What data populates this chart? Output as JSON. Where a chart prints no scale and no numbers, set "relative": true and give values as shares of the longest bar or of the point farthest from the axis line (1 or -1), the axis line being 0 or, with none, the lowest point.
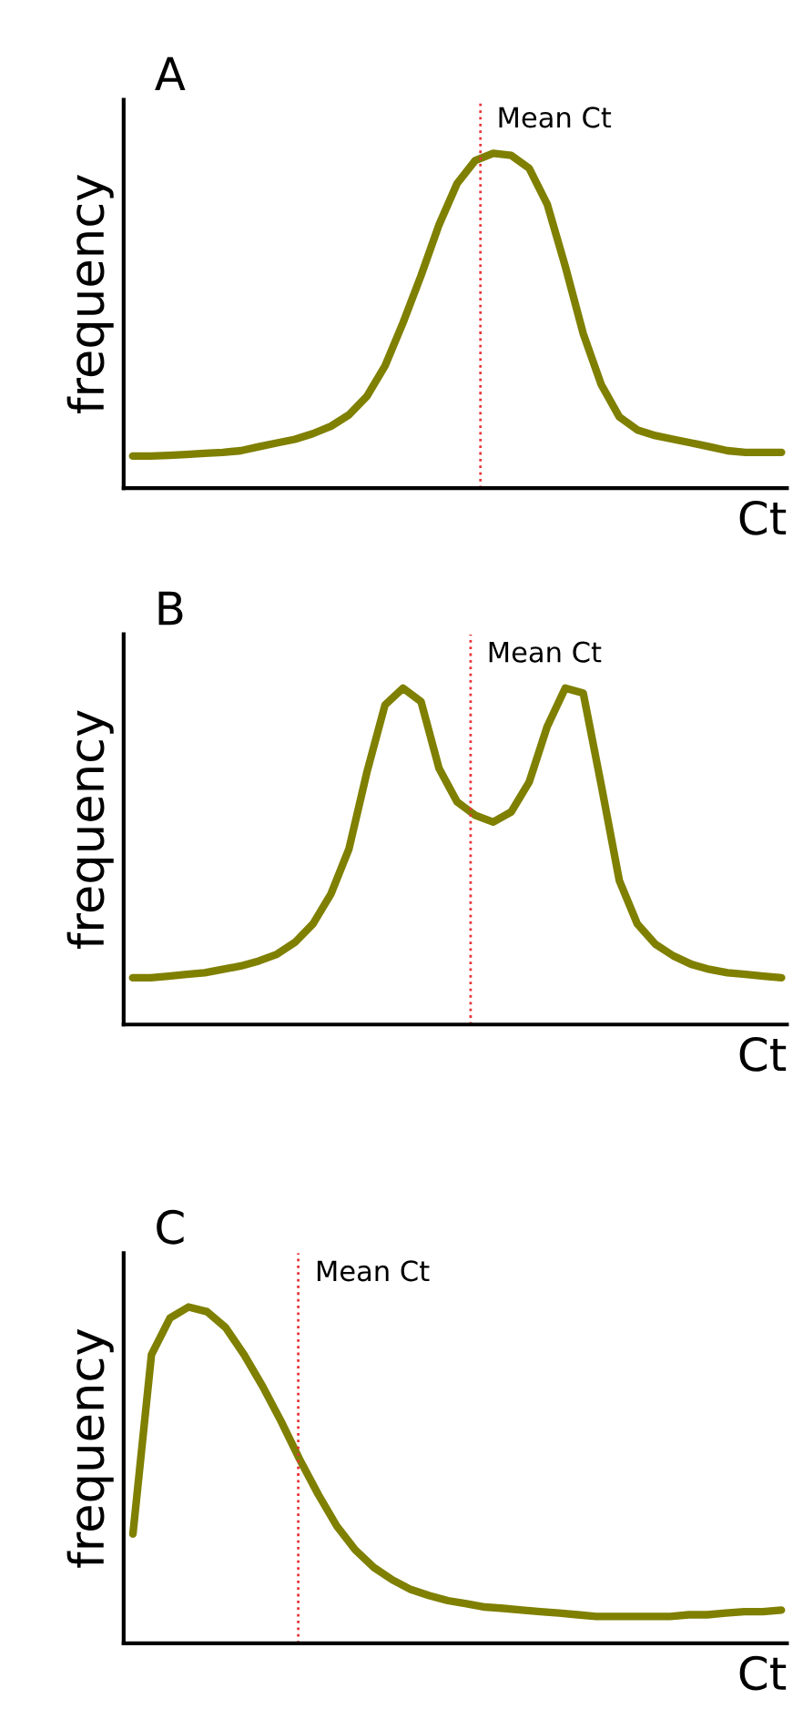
{
  "chart_data": [
    {
      "type": "line",
      "title": "A",
      "xlabel": "Ct",
      "ylabel": "frequency",
      "relative": true,
      "categories": [
        null,
        null,
        null,
        null,
        null,
        null,
        null,
        null,
        null,
        null,
        null,
        null,
        null,
        null,
        null,
        null,
        null,
        null,
        null,
        null,
        null,
        null,
        null,
        null,
        null,
        null,
        null,
        null,
        null,
        null,
        null,
        null,
        null,
        null,
        null,
        null,
        null
      ],
      "series": [
        {
          "color": "#7f7f00",
          "values": [
            0.096,
            0.096,
            0.098,
            0.101,
            0.104,
            0.107,
            0.112,
            0.124,
            0.135,
            0.146,
            0.163,
            0.185,
            0.219,
            0.275,
            0.365,
            0.494,
            0.635,
            0.787,
            0.91,
            0.978,
            1,
            0.994,
            0.955,
            0.848,
            0.663,
            0.461,
            0.309,
            0.213,
            0.174,
            0.157,
            0.146,
            0.135,
            0.124,
            0.112,
            0.107,
            0.107,
            0.107
          ]
        }
      ],
      "annotations": [
        "Mean Ct"
      ]
    },
    {
      "type": "line",
      "title": "B",
      "xlabel": "Ct",
      "ylabel": "frequency",
      "relative": true,
      "categories": [
        null,
        null,
        null,
        null,
        null,
        null,
        null,
        null,
        null,
        null,
        null,
        null,
        null,
        null,
        null,
        null,
        null,
        null,
        null,
        null,
        null,
        null,
        null,
        null,
        null,
        null,
        null,
        null,
        null,
        null,
        null,
        null,
        null,
        null,
        null,
        null,
        null
      ],
      "series": [
        {
          "color": "#7f7f00",
          "values": [
            0.139,
            0.139,
            0.144,
            0.149,
            0.154,
            0.164,
            0.174,
            0.189,
            0.209,
            0.244,
            0.299,
            0.388,
            0.522,
            0.751,
            0.95,
            1,
            0.96,
            0.761,
            0.662,
            0.622,
            0.602,
            0.632,
            0.721,
            0.886,
            1,
            0.985,
            0.711,
            0.428,
            0.299,
            0.239,
            0.204,
            0.179,
            0.164,
            0.154,
            0.149,
            0.144,
            0.139
          ]
        }
      ],
      "annotations": [
        "Mean Ct"
      ]
    },
    {
      "type": "line",
      "title": "C",
      "xlabel": "Ct",
      "ylabel": "frequency",
      "relative": true,
      "categories": [
        null,
        null,
        null,
        null,
        null,
        null,
        null,
        null,
        null,
        null,
        null,
        null,
        null,
        null,
        null,
        null,
        null,
        null,
        null,
        null,
        null,
        null,
        null,
        null,
        null,
        null,
        null,
        null,
        null,
        null,
        null,
        null,
        null,
        null,
        null,
        null
      ],
      "series": [
        {
          "color": "#7f7f00",
          "values": [
            0.325,
            0.858,
            0.967,
            1,
            0.986,
            0.939,
            0.858,
            0.764,
            0.66,
            0.547,
            0.443,
            0.349,
            0.278,
            0.226,
            0.189,
            0.16,
            0.142,
            0.127,
            0.118,
            0.108,
            0.104,
            0.099,
            0.094,
            0.09,
            0.085,
            0.08,
            0.08,
            0.08,
            0.08,
            0.08,
            0.085,
            0.085,
            0.09,
            0.094,
            0.094,
            0.099
          ]
        }
      ],
      "annotations": [
        "Mean Ct"
      ]
    }
  ]
}
